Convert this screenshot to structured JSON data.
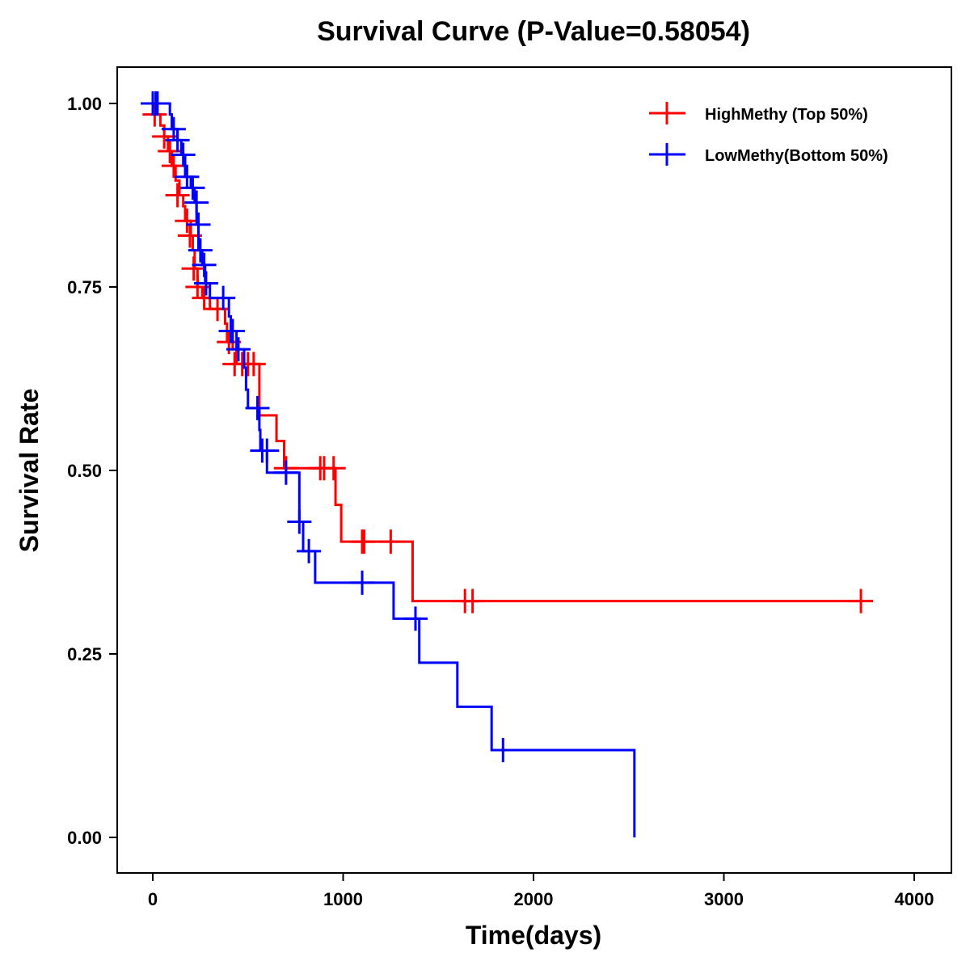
{
  "chart_data": {
    "type": "line",
    "subtype": "kaplan-meier step",
    "title": "Survival Curve (P-Value=0.58054)",
    "xlabel": "Time(days)",
    "ylabel": "Survival Rate",
    "xlim": [
      -190,
      4180
    ],
    "ylim": [
      -0.048,
      1.05
    ],
    "xticks": [
      0,
      1000,
      2000,
      3000,
      4000
    ],
    "xtick_labels": [
      "0",
      "1000",
      "2000",
      "3000",
      "4000"
    ],
    "yticks": [
      0,
      0.25,
      0.5,
      0.75,
      1.0
    ],
    "ytick_labels": [
      "0.00",
      "0.25",
      "0.50",
      "0.75",
      "1.00"
    ],
    "grid": false,
    "legend_position": "top-right",
    "series": [
      {
        "name": "HighMethy (Top 50%)",
        "color": "#ff0000",
        "steps": [
          [
            0,
            1.0
          ],
          [
            20,
            0.985
          ],
          [
            40,
            0.97
          ],
          [
            60,
            0.955
          ],
          [
            80,
            0.935
          ],
          [
            100,
            0.915
          ],
          [
            120,
            0.895
          ],
          [
            140,
            0.875
          ],
          [
            160,
            0.86
          ],
          [
            170,
            0.84
          ],
          [
            200,
            0.82
          ],
          [
            210,
            0.8
          ],
          [
            220,
            0.775
          ],
          [
            235,
            0.75
          ],
          [
            260,
            0.735
          ],
          [
            300,
            0.72
          ],
          [
            380,
            0.7
          ],
          [
            390,
            0.675
          ],
          [
            420,
            0.665
          ],
          [
            440,
            0.645
          ],
          [
            560,
            0.575
          ],
          [
            650,
            0.54
          ],
          [
            690,
            0.503
          ],
          [
            960,
            0.453
          ],
          [
            990,
            0.403
          ],
          [
            1365,
            0.322
          ]
        ],
        "end_time": 3720,
        "censored": [
          [
            10,
            0.985
          ],
          [
            60,
            0.955
          ],
          [
            90,
            0.935
          ],
          [
            110,
            0.915
          ],
          [
            130,
            0.875
          ],
          [
            180,
            0.84
          ],
          [
            195,
            0.82
          ],
          [
            215,
            0.775
          ],
          [
            235,
            0.75
          ],
          [
            270,
            0.735
          ],
          [
            340,
            0.72
          ],
          [
            400,
            0.675
          ],
          [
            430,
            0.645
          ],
          [
            470,
            0.645
          ],
          [
            500,
            0.645
          ],
          [
            530,
            0.645
          ],
          [
            700,
            0.503
          ],
          [
            880,
            0.503
          ],
          [
            900,
            0.503
          ],
          [
            950,
            0.503
          ],
          [
            1100,
            0.403
          ],
          [
            1110,
            0.403
          ],
          [
            1250,
            0.403
          ],
          [
            1640,
            0.322
          ],
          [
            1680,
            0.322
          ],
          [
            3720,
            0.322
          ]
        ]
      },
      {
        "name": "LowMethy(Bottom 50%)",
        "color": "#0000ff",
        "steps": [
          [
            0,
            1.0
          ],
          [
            90,
            0.985
          ],
          [
            100,
            0.965
          ],
          [
            130,
            0.95
          ],
          [
            150,
            0.93
          ],
          [
            170,
            0.9
          ],
          [
            200,
            0.885
          ],
          [
            220,
            0.865
          ],
          [
            230,
            0.835
          ],
          [
            240,
            0.8
          ],
          [
            260,
            0.78
          ],
          [
            275,
            0.755
          ],
          [
            300,
            0.735
          ],
          [
            400,
            0.71
          ],
          [
            410,
            0.69
          ],
          [
            440,
            0.665
          ],
          [
            480,
            0.64
          ],
          [
            490,
            0.61
          ],
          [
            500,
            0.585
          ],
          [
            560,
            0.555
          ],
          [
            565,
            0.527
          ],
          [
            600,
            0.497
          ],
          [
            770,
            0.43
          ],
          [
            790,
            0.39
          ],
          [
            853,
            0.347
          ],
          [
            1265,
            0.298
          ],
          [
            1400,
            0.238
          ],
          [
            1600,
            0.178
          ],
          [
            1780,
            0.119
          ],
          [
            2530,
            0.0
          ]
        ],
        "end_time": 2530,
        "censored": [
          [
            0,
            1.0
          ],
          [
            15,
            1.0
          ],
          [
            25,
            1.0
          ],
          [
            110,
            0.965
          ],
          [
            130,
            0.95
          ],
          [
            160,
            0.93
          ],
          [
            180,
            0.9
          ],
          [
            210,
            0.885
          ],
          [
            230,
            0.865
          ],
          [
            240,
            0.835
          ],
          [
            250,
            0.8
          ],
          [
            270,
            0.78
          ],
          [
            280,
            0.755
          ],
          [
            370,
            0.735
          ],
          [
            410,
            0.69
          ],
          [
            420,
            0.69
          ],
          [
            450,
            0.665
          ],
          [
            550,
            0.585
          ],
          [
            575,
            0.527
          ],
          [
            600,
            0.527
          ],
          [
            700,
            0.497
          ],
          [
            770,
            0.43
          ],
          [
            820,
            0.39
          ],
          [
            1100,
            0.347
          ],
          [
            1380,
            0.298
          ],
          [
            1840,
            0.119
          ]
        ]
      }
    ]
  }
}
